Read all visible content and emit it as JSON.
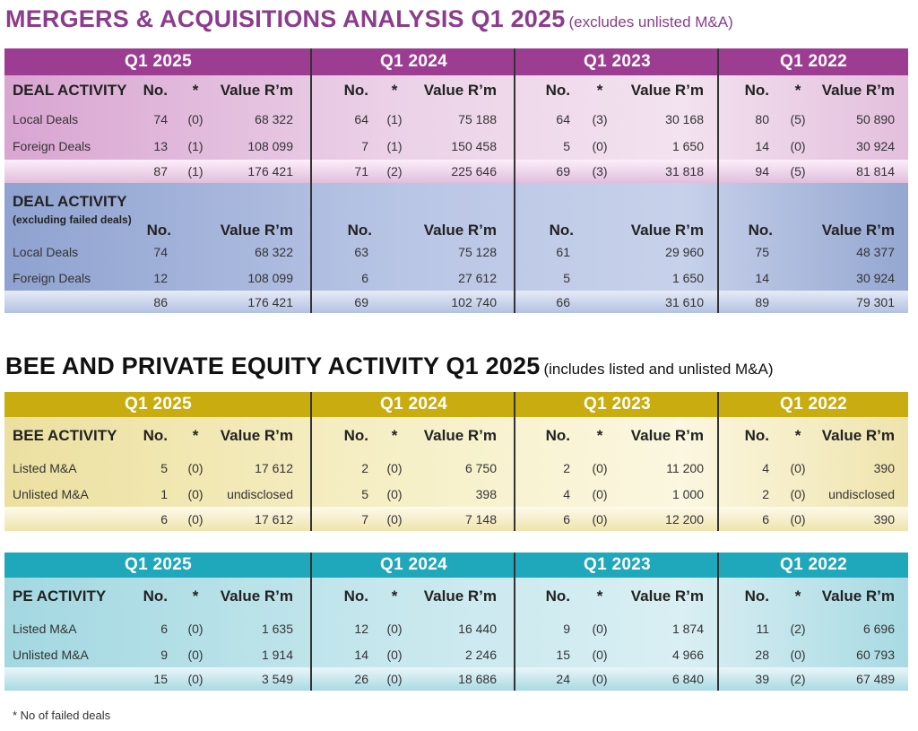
{
  "ma": {
    "title": "MERGERS & ACQUISITIONS ANALYSIS Q1 2025",
    "note": "(excludes unlisted M&A)",
    "years": [
      "Q1 2025",
      "Q1 2024",
      "Q1 2023",
      "Q1 2022"
    ],
    "deal": {
      "header": {
        "label": "DEAL ACTIVITY",
        "no": "No.",
        "star": "*",
        "value": "Value R’m"
      },
      "rows": [
        {
          "label": "Local Deals",
          "cols": [
            [
              "74",
              "(0)",
              "68 322"
            ],
            [
              "64",
              "(1)",
              "75 188"
            ],
            [
              "64",
              "(3)",
              "30 168"
            ],
            [
              "80",
              "(5)",
              "50 890"
            ]
          ]
        },
        {
          "label": "Foreign Deals",
          "cols": [
            [
              "13",
              "(1)",
              "108 099"
            ],
            [
              "7",
              "(1)",
              "150 458"
            ],
            [
              "5",
              "(0)",
              "1 650"
            ],
            [
              "14",
              "(0)",
              "30 924"
            ]
          ]
        }
      ],
      "total": [
        [
          "87",
          "(1)",
          "176 421"
        ],
        [
          "71",
          "(2)",
          "225 646"
        ],
        [
          "69",
          "(3)",
          "31 818"
        ],
        [
          "94",
          "(5)",
          "81 814"
        ]
      ]
    },
    "excl": {
      "header": {
        "label": "DEAL ACTIVITY",
        "sublabel": "(excluding failed deals)",
        "no": "No.",
        "value": "Value R’m"
      },
      "rows": [
        {
          "label": "Local Deals",
          "cols": [
            [
              "74",
              "68 322"
            ],
            [
              "63",
              "75 128"
            ],
            [
              "61",
              "29 960"
            ],
            [
              "75",
              "48 377"
            ]
          ]
        },
        {
          "label": "Foreign Deals",
          "cols": [
            [
              "12",
              "108 099"
            ],
            [
              "6",
              "27 612"
            ],
            [
              "5",
              "1 650"
            ],
            [
              "14",
              "30 924"
            ]
          ]
        }
      ],
      "total": [
        [
          "86",
          "176 421"
        ],
        [
          "69",
          "102 740"
        ],
        [
          "66",
          "31 610"
        ],
        [
          "89",
          "79 301"
        ]
      ]
    }
  },
  "bee": {
    "title": "BEE AND PRIVATE EQUITY ACTIVITY Q1 2025",
    "note": "(includes listed and unlisted M&A)",
    "years": [
      "Q1 2025",
      "Q1 2024",
      "Q1 2023",
      "Q1 2022"
    ],
    "header": {
      "label": "BEE ACTIVITY",
      "no": "No.",
      "star": "*",
      "value": "Value R’m"
    },
    "rows": [
      {
        "label": "Listed M&A",
        "cols": [
          [
            "5",
            "(0)",
            "17 612"
          ],
          [
            "2",
            "(0)",
            "6 750"
          ],
          [
            "2",
            "(0)",
            "11 200"
          ],
          [
            "4",
            "(0)",
            "390"
          ]
        ]
      },
      {
        "label": "Unlisted M&A",
        "cols": [
          [
            "1",
            "(0)",
            "undisclosed"
          ],
          [
            "5",
            "(0)",
            "398"
          ],
          [
            "4",
            "(0)",
            "1 000"
          ],
          [
            "2",
            "(0)",
            "undisclosed"
          ]
        ]
      }
    ],
    "total": [
      [
        "6",
        "(0)",
        "17 612"
      ],
      [
        "7",
        "(0)",
        "7 148"
      ],
      [
        "6",
        "(0)",
        "12 200"
      ],
      [
        "6",
        "(0)",
        "390"
      ]
    ]
  },
  "pe": {
    "years": [
      "Q1 2025",
      "Q1 2024",
      "Q1 2023",
      "Q1 2022"
    ],
    "header": {
      "label": "PE ACTIVITY",
      "no": "No.",
      "star": "*",
      "value": "Value R’m"
    },
    "rows": [
      {
        "label": "Listed M&A",
        "cols": [
          [
            "6",
            "(0)",
            "1 635"
          ],
          [
            "12",
            "(0)",
            "16 440"
          ],
          [
            "9",
            "(0)",
            "1 874"
          ],
          [
            "11",
            "(2)",
            "6 696"
          ]
        ]
      },
      {
        "label": "Unlisted M&A",
        "cols": [
          [
            "9",
            "(0)",
            "1 914"
          ],
          [
            "14",
            "(0)",
            "2 246"
          ],
          [
            "15",
            "(0)",
            "4 966"
          ],
          [
            "28",
            "(0)",
            "60 793"
          ]
        ]
      }
    ],
    "total": [
      [
        "15",
        "(0)",
        "3 549"
      ],
      [
        "26",
        "(0)",
        "18 686"
      ],
      [
        "24",
        "(0)",
        "6 840"
      ],
      [
        "39",
        "(2)",
        "67 489"
      ]
    ]
  },
  "footnote": "* No of failed deals",
  "colors": {
    "ma_band": "#9c3d91",
    "ma_body": "#e7c6e1",
    "excl_body": "#a9b6d9",
    "bee_band": "#c9ac10",
    "bee_body": "#f3ecb7",
    "pe_band": "#1fa7bc",
    "pe_body": "#b2dde5"
  }
}
